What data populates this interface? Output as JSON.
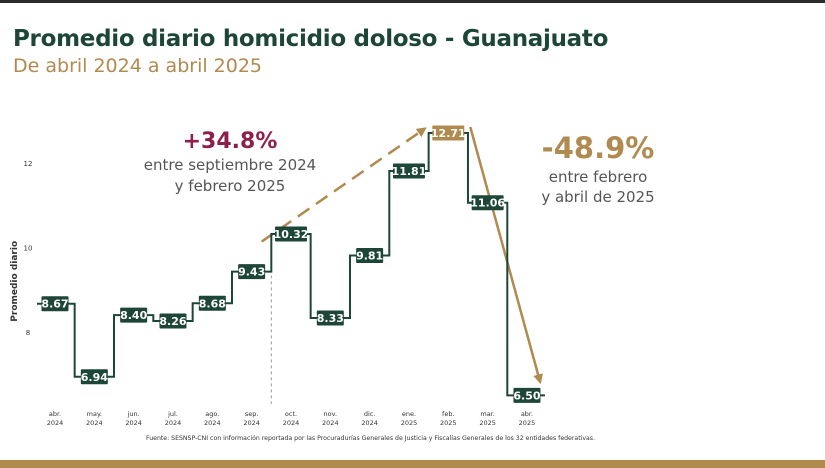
{
  "header": {
    "title": "Promedio diario homicidio doloso - Guanajuato",
    "subtitle": "De abril 2024 a abril 2025"
  },
  "annotations": {
    "increase_pct": "+34.8%",
    "increase_line1": "entre septiembre 2024",
    "increase_line2": "y febrero 2025",
    "decrease_pct": "-48.9%",
    "decrease_line1": "entre febrero",
    "decrease_line2": "y abril de 2025"
  },
  "source": "Fuente: SESNSP-CNI con información reportada por las Procuradurías Generales de Justicia y Fiscalías Generales de los 32 entidades federativas.",
  "colors": {
    "title": "#1d4638",
    "subtitle": "#b08a4f",
    "series": "#1d4638",
    "increase_pct": "#8e1f4d",
    "decrease_pct": "#b08a4f",
    "trend_arrow": "#b08a4f",
    "bottom_bar": "#b08a4f"
  },
  "chart_data": {
    "type": "line",
    "step": true,
    "categories": [
      [
        "abr.",
        "2024"
      ],
      [
        "may.",
        "2024"
      ],
      [
        "jun.",
        "2024"
      ],
      [
        "jul.",
        "2024"
      ],
      [
        "ago.",
        "2024"
      ],
      [
        "sep.",
        "2024"
      ],
      [
        "oct.",
        "2024"
      ],
      [
        "nov.",
        "2024"
      ],
      [
        "dic.",
        "2024"
      ],
      [
        "ene.",
        "2025"
      ],
      [
        "feb.",
        "2025"
      ],
      [
        "mar.",
        "2025"
      ],
      [
        "abr.",
        "2025"
      ]
    ],
    "values": [
      8.67,
      6.94,
      8.4,
      8.26,
      8.68,
      9.43,
      10.32,
      8.33,
      9.81,
      11.81,
      12.71,
      11.06,
      6.5
    ],
    "data_labels": [
      "8.67",
      "6.94",
      "8.40",
      "8.26",
      "8.68",
      "9.43",
      "10.32",
      "8.33",
      "9.81",
      "11.81",
      "12.71",
      "11.06",
      "6.50"
    ],
    "ylabel": "Promedio diario",
    "yticks": [
      8,
      10,
      12
    ],
    "ylim": [
      6.2,
      13.4
    ],
    "highlight_index": 10,
    "divider_after_index": 5,
    "grid": false,
    "legend": "none"
  }
}
